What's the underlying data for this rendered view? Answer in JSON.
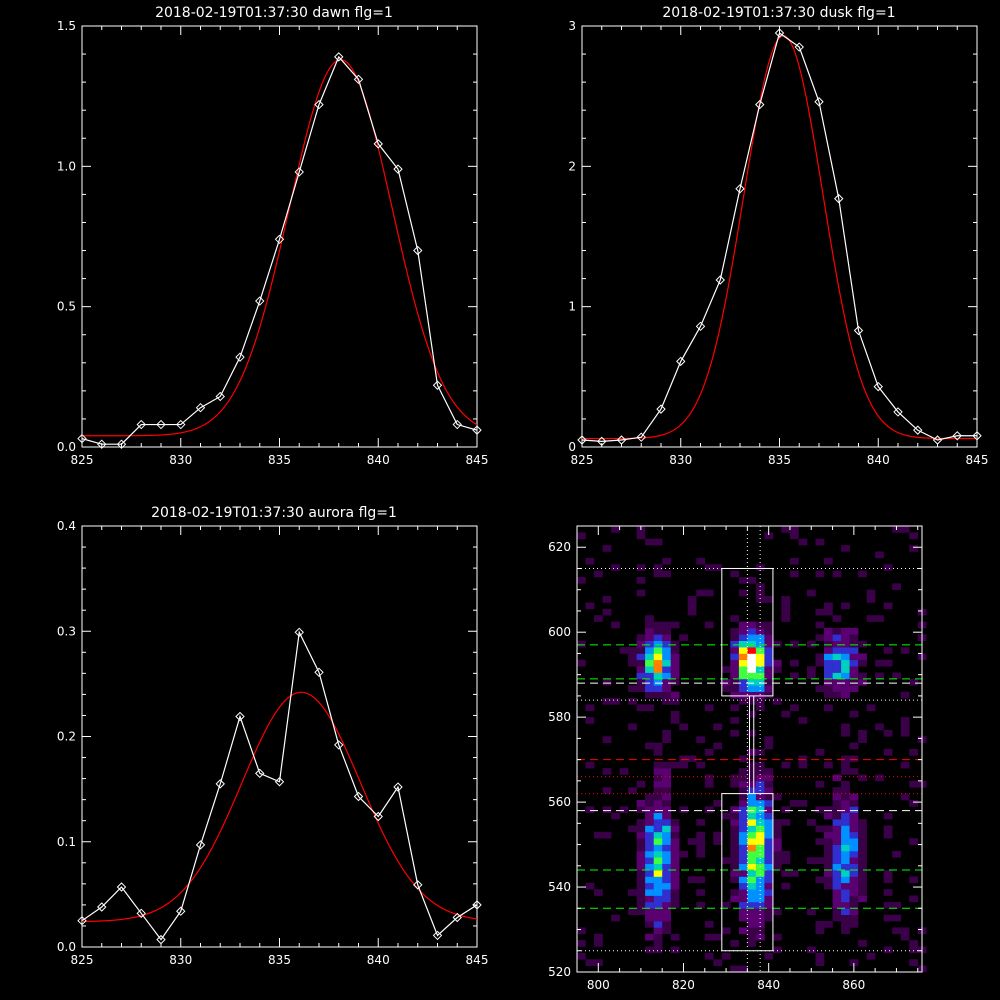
{
  "charts": [
    {
      "id": "dawn",
      "type": "line",
      "title": "2018-02-19T01:37:30 dawn flg=1",
      "xlim": [
        825,
        845
      ],
      "ylim": [
        0,
        1.5
      ],
      "xticks": [
        825,
        830,
        835,
        840,
        845
      ],
      "xtick_labels": [
        "825",
        "830",
        "835",
        "840",
        "845"
      ],
      "yticks": [
        0,
        0.5,
        1.0,
        1.5
      ],
      "ytick_labels": [
        "0.0",
        "0.5",
        "1.0",
        "1.5"
      ],
      "observed": {
        "color": "#ffffff",
        "x": [
          825,
          826,
          827,
          828,
          829,
          830,
          831,
          832,
          833,
          834,
          835,
          836,
          837,
          838,
          839,
          840,
          841,
          842,
          843,
          844,
          845
        ],
        "y": [
          0.03,
          0.01,
          0.01,
          0.08,
          0.08,
          0.08,
          0.14,
          0.18,
          0.32,
          0.52,
          0.74,
          0.98,
          1.22,
          1.39,
          1.31,
          1.08,
          0.99,
          0.7,
          0.22,
          0.08,
          0.06
        ]
      },
      "fit": {
        "color": "#ff0000",
        "type": "gaussian",
        "amplitude": 1.34,
        "center": 838.1,
        "sigma": 2.6,
        "offset": 0.04
      }
    },
    {
      "id": "dusk",
      "type": "line",
      "title": "2018-02-19T01:37:30 dusk flg=1",
      "xlim": [
        825,
        845
      ],
      "ylim": [
        0,
        3
      ],
      "xticks": [
        825,
        830,
        835,
        840,
        845
      ],
      "xtick_labels": [
        "825",
        "830",
        "835",
        "840",
        "845"
      ],
      "yticks": [
        0,
        1,
        2,
        3
      ],
      "ytick_labels": [
        "0",
        "1",
        "2",
        "3"
      ],
      "observed": {
        "color": "#ffffff",
        "x": [
          825,
          826,
          827,
          828,
          829,
          830,
          831,
          832,
          833,
          834,
          835,
          836,
          837,
          838,
          839,
          840,
          841,
          842,
          843,
          844,
          845
        ],
        "y": [
          0.05,
          0.04,
          0.05,
          0.07,
          0.27,
          0.61,
          0.86,
          1.19,
          1.84,
          2.44,
          2.95,
          2.85,
          2.46,
          1.77,
          0.83,
          0.43,
          0.25,
          0.12,
          0.05,
          0.08,
          0.08
        ]
      },
      "fit": {
        "color": "#ff0000",
        "type": "gaussian",
        "amplitude": 2.87,
        "center": 835.2,
        "sigma": 2.0,
        "offset": 0.06
      }
    },
    {
      "id": "aurora",
      "type": "line",
      "title": "2018-02-19T01:37:30 aurora flg=1",
      "xlim": [
        825,
        845
      ],
      "ylim": [
        0,
        0.4
      ],
      "xticks": [
        825,
        830,
        835,
        840,
        845
      ],
      "xtick_labels": [
        "825",
        "830",
        "835",
        "840",
        "845"
      ],
      "yticks": [
        0,
        0.1,
        0.2,
        0.3,
        0.4
      ],
      "ytick_labels": [
        "0.0",
        "0.1",
        "0.2",
        "0.3",
        "0.4"
      ],
      "observed": {
        "color": "#ffffff",
        "x": [
          825,
          826,
          827,
          828,
          829,
          830,
          831,
          832,
          833,
          834,
          835,
          836,
          837,
          838,
          839,
          840,
          841,
          842,
          843,
          844,
          845
        ],
        "y": [
          0.025,
          0.038,
          0.057,
          0.032,
          0.007,
          0.034,
          0.097,
          0.155,
          0.219,
          0.165,
          0.157,
          0.299,
          0.261,
          0.192,
          0.143,
          0.124,
          0.152,
          0.059,
          0.011,
          0.028,
          0.04
        ]
      },
      "fit": {
        "color": "#ff0000",
        "type": "gaussian",
        "amplitude": 0.218,
        "center": 836.1,
        "sigma": 3.0,
        "offset": 0.024
      }
    },
    {
      "id": "image",
      "type": "heatmap",
      "xlim": [
        795,
        876
      ],
      "ylim": [
        520,
        625
      ],
      "xticks": [
        800,
        820,
        840,
        860
      ],
      "xtick_labels": [
        "800",
        "820",
        "840",
        "860"
      ],
      "yticks": [
        520,
        540,
        560,
        580,
        600,
        620
      ],
      "ytick_labels": [
        "520",
        "540",
        "560",
        "580",
        "600",
        "620"
      ],
      "colorscale": [
        "#000000",
        "#3a0048",
        "#5a0070",
        "#3030d0",
        "#0090ff",
        "#00d0c0",
        "#40ff40",
        "#ffff00",
        "#ff8000",
        "#ff0000",
        "#ffffff"
      ],
      "blobs": [
        {
          "x": 814,
          "y": 593,
          "peak": 0.62
        },
        {
          "x": 836,
          "y": 593,
          "peak": 0.95
        },
        {
          "x": 857,
          "y": 593,
          "peak": 0.48
        },
        {
          "x": 814,
          "y": 546,
          "peak": 0.5
        },
        {
          "x": 837,
          "y": 549,
          "peak": 0.68
        },
        {
          "x": 858,
          "y": 547,
          "peak": 0.38
        }
      ],
      "boxes": [
        {
          "x0": 829,
          "x1": 841,
          "y0": 585,
          "y1": 615,
          "color": "#ffffff"
        },
        {
          "x0": 829,
          "x1": 841,
          "y0": 525,
          "y1": 562,
          "color": "#ffffff"
        }
      ],
      "hlines": [
        {
          "y": 615,
          "color": "#ffffff",
          "style": "dotted"
        },
        {
          "y": 597,
          "color": "#00ff00",
          "style": "dashed"
        },
        {
          "y": 589,
          "color": "#00ff00",
          "style": "dashed"
        },
        {
          "y": 588,
          "color": "#ffffff",
          "style": "dashed"
        },
        {
          "y": 584,
          "color": "#ffffff",
          "style": "dotted"
        },
        {
          "y": 570,
          "color": "#ff0000",
          "style": "dashed"
        },
        {
          "y": 566,
          "color": "#ff0000",
          "style": "dotted"
        },
        {
          "y": 562,
          "color": "#ff0000",
          "style": "dotted"
        },
        {
          "y": 558,
          "color": "#ffffff",
          "style": "dashed"
        },
        {
          "y": 544,
          "color": "#00ff00",
          "style": "dashed"
        },
        {
          "y": 535,
          "color": "#00ff00",
          "style": "dashed"
        },
        {
          "y": 525,
          "color": "#ffffff",
          "style": "dotted"
        }
      ],
      "vlines": [
        {
          "x": 835,
          "color": "#ffffff",
          "style": "dotted"
        },
        {
          "x": 838,
          "color": "#ffffff",
          "style": "dotted"
        }
      ]
    }
  ]
}
